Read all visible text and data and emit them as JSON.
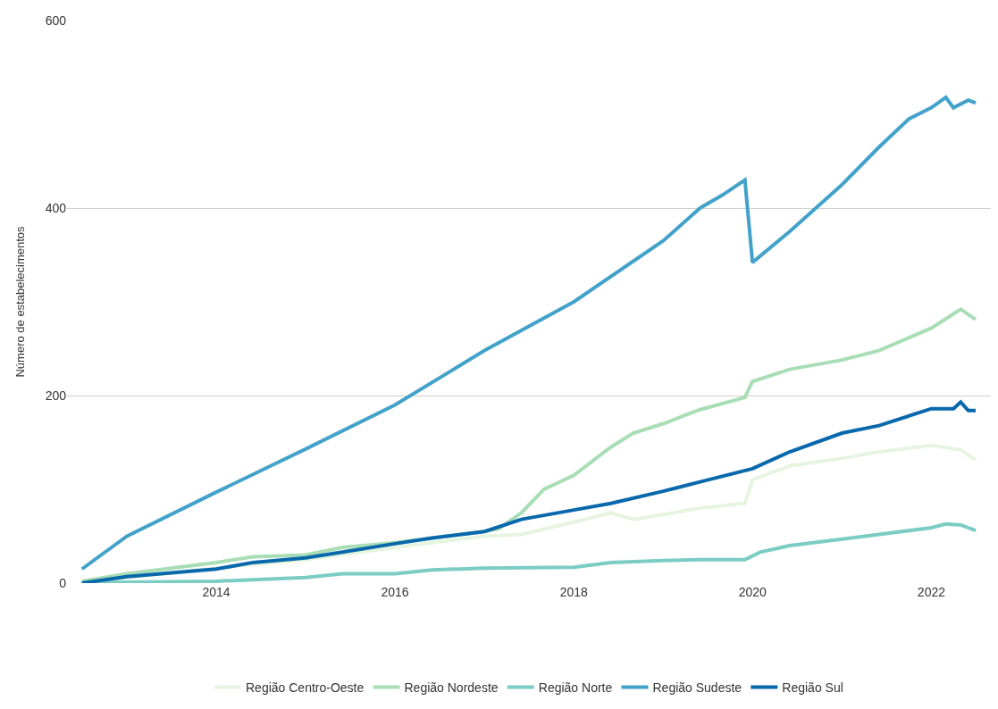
{
  "chart_data": {
    "type": "line",
    "ylabel": "Número de estabelecimentos",
    "xlim": [
      "2012-05",
      "2022-09"
    ],
    "xticks": [
      "2014",
      "2016",
      "2018",
      "2020",
      "2022"
    ],
    "ylim": [
      0,
      600
    ],
    "yticks": [
      0,
      200,
      400,
      600
    ],
    "grid": "y",
    "legend": "bottom",
    "marker": "none",
    "line_style": "solid",
    "series": [
      {
        "name": "Região Centro-Oeste",
        "color": "#e5f5e0",
        "x": [
          "2012-07",
          "2013-01",
          "2014-01",
          "2015-01",
          "2016-01",
          "2017-01",
          "2017-06",
          "2018-01",
          "2018-06",
          "2018-09",
          "2019-01",
          "2019-06",
          "2019-12",
          "2020-01",
          "2020-06",
          "2021-01",
          "2021-06",
          "2022-01",
          "2022-05",
          "2022-07"
        ],
        "values": [
          0,
          6,
          16,
          25,
          38,
          50,
          52,
          65,
          75,
          68,
          73,
          80,
          85,
          110,
          125,
          133,
          140,
          147,
          142,
          131
        ]
      },
      {
        "name": "Região Nordeste",
        "color": "#a8ddb5",
        "x": [
          "2012-07",
          "2013-01",
          "2014-01",
          "2014-06",
          "2015-01",
          "2015-06",
          "2016-01",
          "2017-01",
          "2017-03",
          "2017-06",
          "2017-09",
          "2018-01",
          "2018-06",
          "2018-09",
          "2019-01",
          "2019-06",
          "2019-12",
          "2020-01",
          "2020-06",
          "2021-01",
          "2021-06",
          "2022-01",
          "2022-05",
          "2022-07"
        ],
        "values": [
          2,
          10,
          22,
          28,
          30,
          38,
          43,
          55,
          58,
          75,
          100,
          115,
          145,
          160,
          170,
          185,
          198,
          215,
          228,
          238,
          248,
          272,
          292,
          281
        ]
      },
      {
        "name": "Região Norte",
        "color": "#7bccc4",
        "x": [
          "2012-07",
          "2013-01",
          "2014-01",
          "2015-01",
          "2015-06",
          "2016-01",
          "2016-06",
          "2017-01",
          "2018-01",
          "2018-06",
          "2019-01",
          "2019-06",
          "2019-12",
          "2020-02",
          "2020-06",
          "2021-01",
          "2021-06",
          "2022-01",
          "2022-03",
          "2022-05",
          "2022-07"
        ],
        "values": [
          0,
          1,
          2,
          6,
          10,
          10,
          14,
          16,
          17,
          22,
          24,
          25,
          25,
          33,
          40,
          47,
          52,
          59,
          63,
          62,
          56
        ]
      },
      {
        "name": "Região Sudeste",
        "color": "#43a2ca",
        "x": [
          "2012-07",
          "2013-01",
          "2014-01",
          "2015-01",
          "2016-01",
          "2017-01",
          "2018-01",
          "2019-01",
          "2019-06",
          "2019-09",
          "2019-12",
          "2020-01",
          "2020-06",
          "2021-01",
          "2021-06",
          "2021-10",
          "2022-01",
          "2022-03",
          "2022-04",
          "2022-06",
          "2022-07"
        ],
        "values": [
          15,
          50,
          97,
          143,
          190,
          248,
          300,
          365,
          400,
          414,
          430,
          342,
          375,
          425,
          465,
          495,
          507,
          518,
          507,
          515,
          512
        ]
      },
      {
        "name": "Região Sul",
        "color": "#0868ac",
        "x": [
          "2012-07",
          "2013-01",
          "2014-01",
          "2014-06",
          "2015-01",
          "2015-06",
          "2016-01",
          "2016-06",
          "2017-01",
          "2017-06",
          "2018-01",
          "2018-06",
          "2019-01",
          "2019-06",
          "2020-01",
          "2020-06",
          "2021-01",
          "2021-06",
          "2022-01",
          "2022-04",
          "2022-05",
          "2022-06",
          "2022-07"
        ],
        "values": [
          0,
          7,
          15,
          22,
          27,
          33,
          42,
          48,
          55,
          68,
          78,
          85,
          98,
          108,
          122,
          140,
          160,
          168,
          186,
          186,
          193,
          184,
          184
        ]
      }
    ]
  }
}
